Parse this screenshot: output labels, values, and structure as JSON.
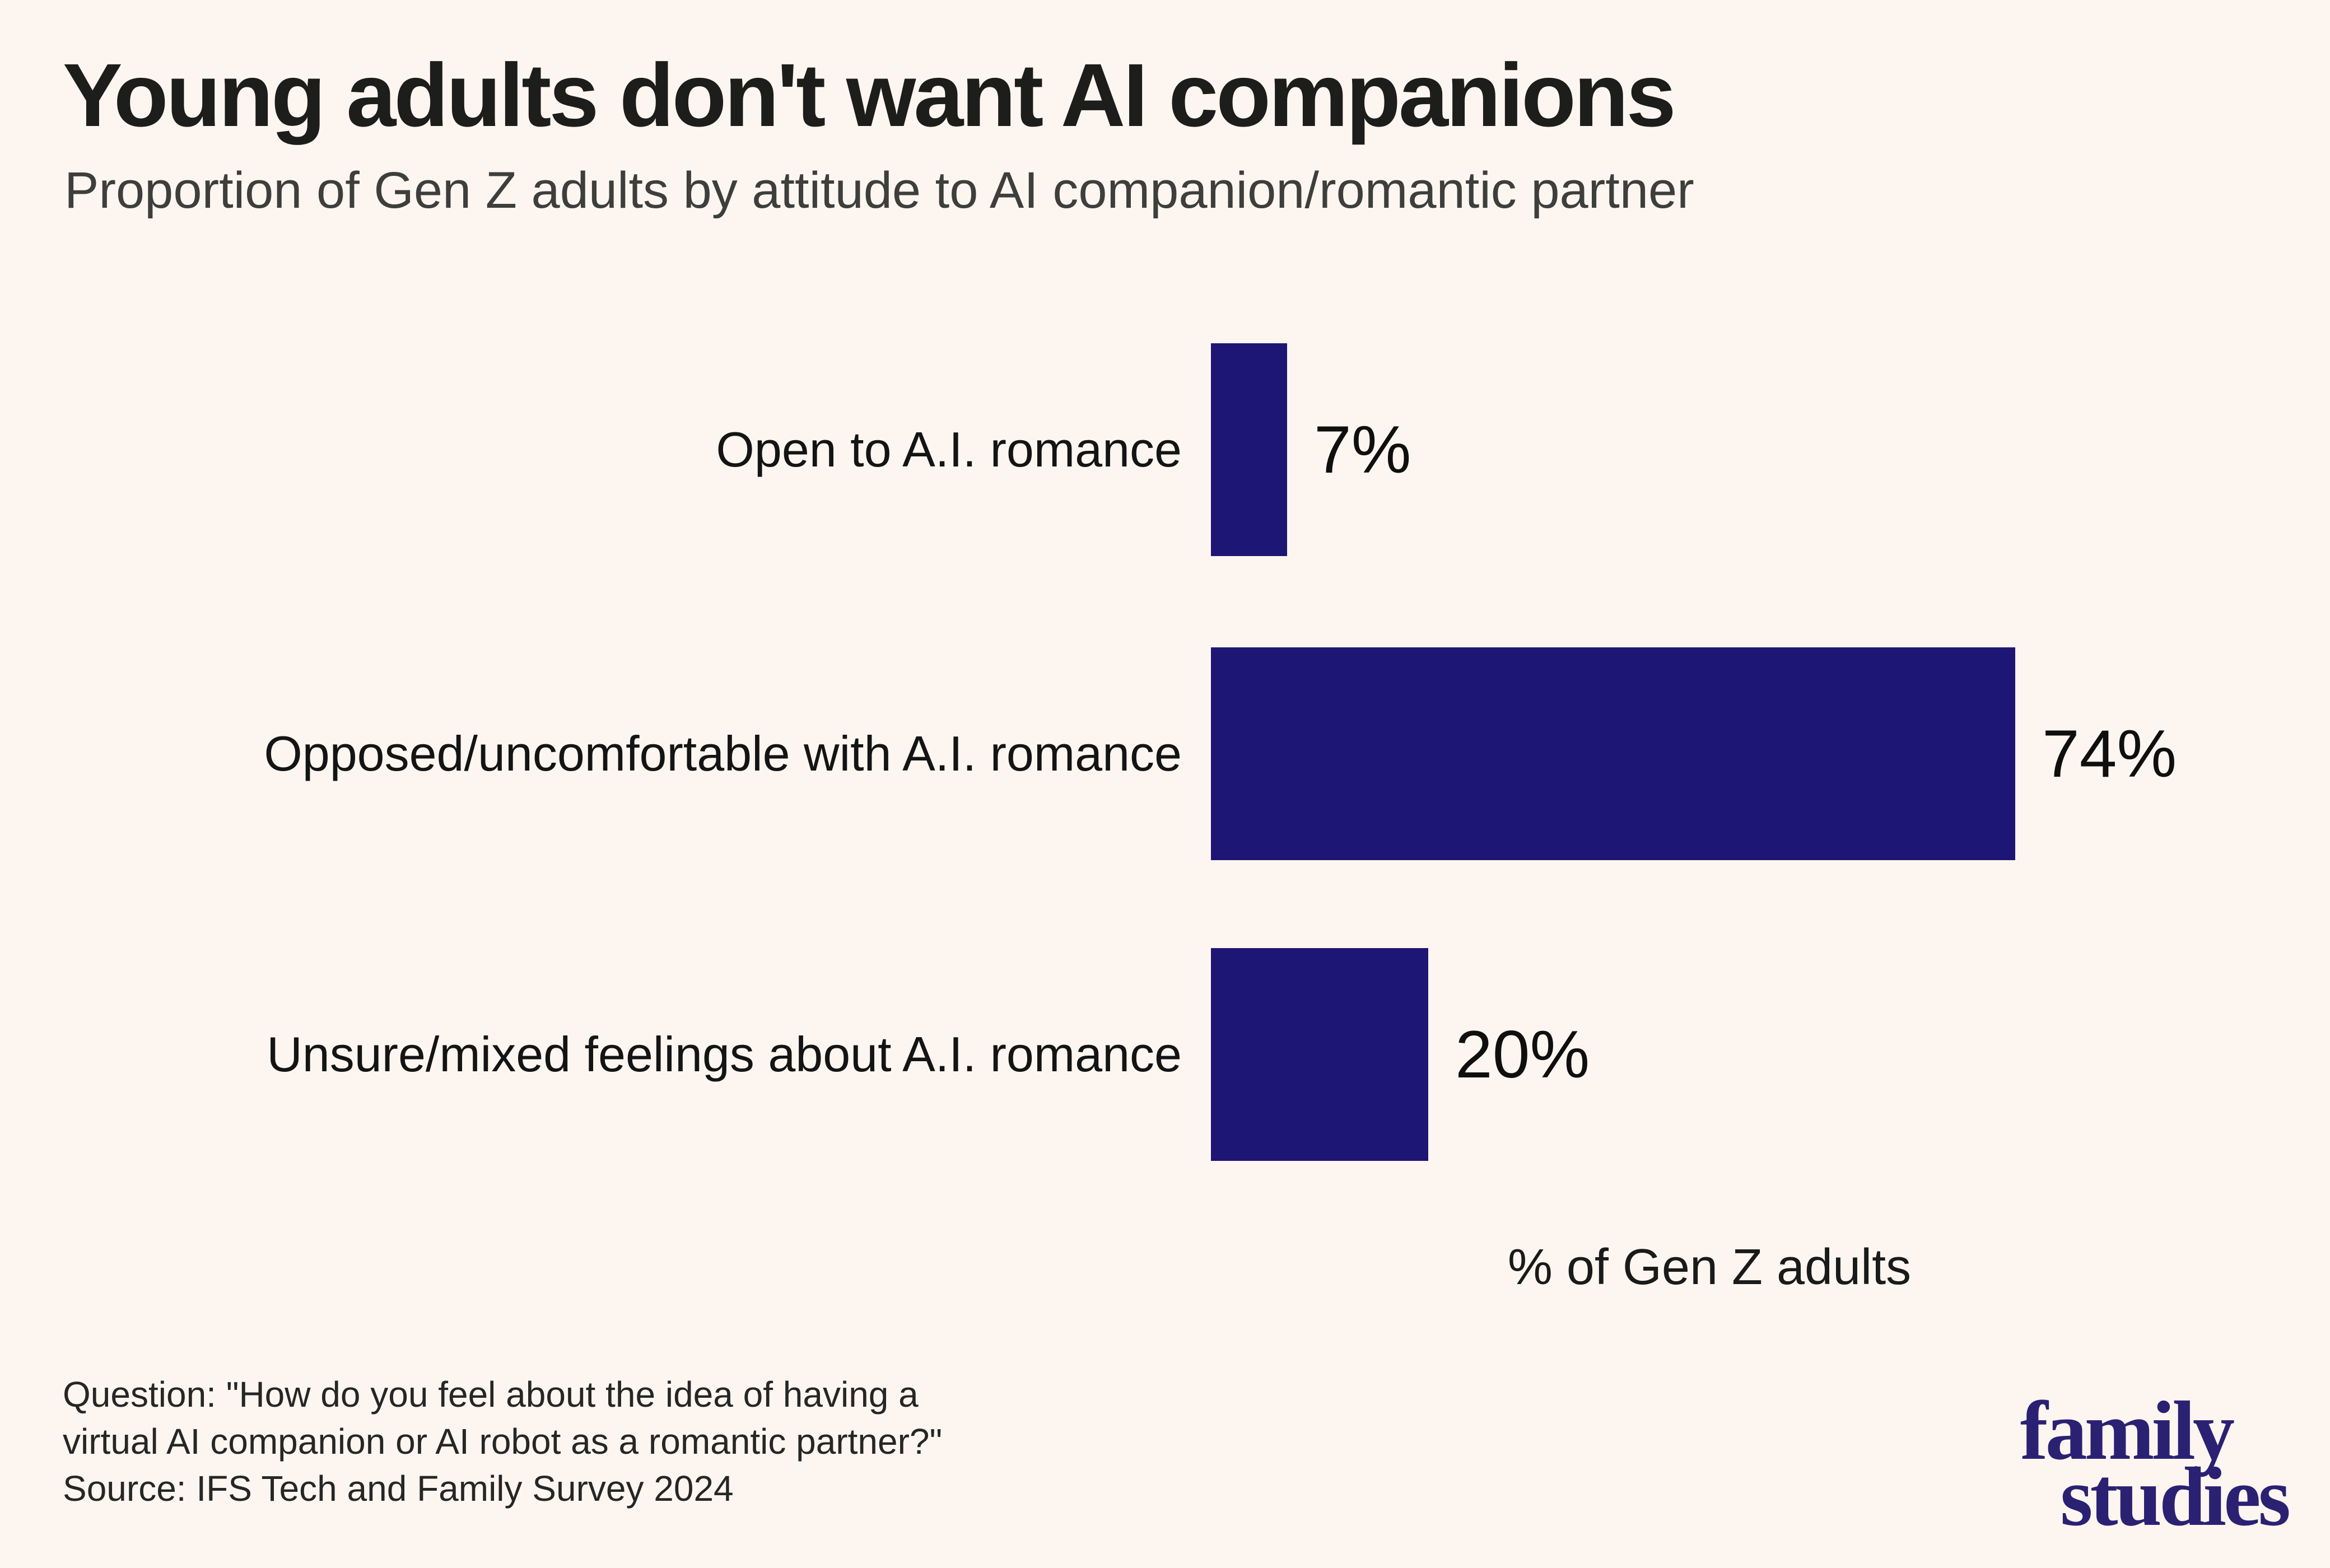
{
  "page": {
    "title": "Young adults don't want AI companions",
    "subtitle": "Proportion of Gen Z adults by attitude to AI companion/romantic partner"
  },
  "chart_data": {
    "type": "bar",
    "orientation": "horizontal",
    "title": "Young adults don't want AI companions",
    "subtitle": "Proportion of Gen Z adults by attitude to AI companion/romantic partner",
    "categories": [
      "Open to A.I. romance",
      "Opposed/uncomfortable with A.I. romance",
      "Unsure/mixed feelings about A.I. romance"
    ],
    "values": [
      7,
      74,
      20
    ],
    "value_labels": [
      "7%",
      "74%",
      "20%"
    ],
    "xlabel": "% of Gen Z adults",
    "xlim": [
      0,
      100
    ],
    "grid": false,
    "legend": false,
    "bar_color": "#1e1675",
    "background_color": "#fdf6f0",
    "value_label_position": "right-of-bar"
  },
  "footer": {
    "question_line1": "Question: \"How do you feel about the idea of having a",
    "question_line2": "virtual AI companion or AI robot as a romantic partner?\"",
    "source_line": "Source: IFS Tech and Family Survey 2024"
  },
  "logo": {
    "line1": "family",
    "line2": "studies",
    "color": "#2b2173"
  }
}
